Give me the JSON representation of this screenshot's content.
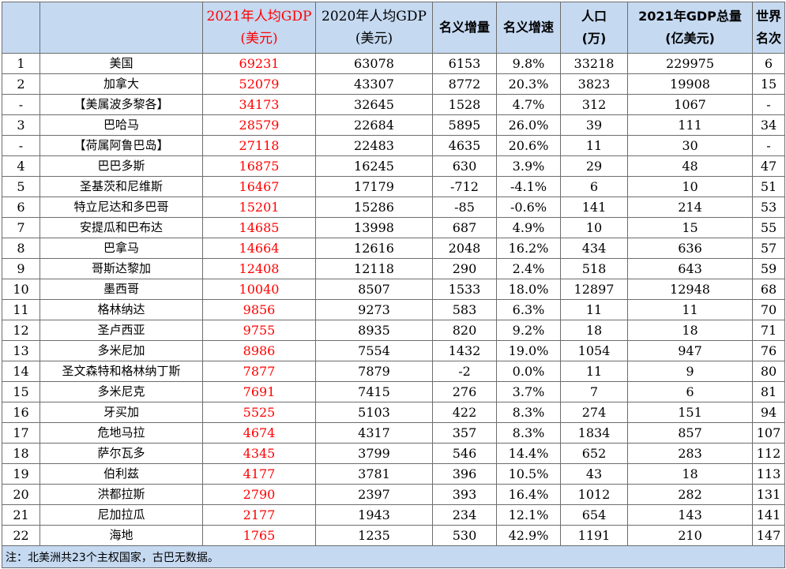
{
  "header": {
    "rank": "",
    "country": "",
    "gdp_pc_2021": [
      "2021年人均GDP",
      "(美元)"
    ],
    "gdp_pc_2020": [
      "2020年人均GDP",
      "(美元)"
    ],
    "nominal_increase": "名义增量",
    "nominal_growth": "名义增速",
    "population": [
      "人口",
      "(万)"
    ],
    "gdp_total_2021": [
      "2021年GDP总量",
      "(亿美元)"
    ],
    "world_rank": [
      "世界",
      "名次"
    ]
  },
  "rows": [
    {
      "rank": "1",
      "country": "美国",
      "gdp21": "69231",
      "gdp20": "63078",
      "inc": "6153",
      "growth": "9.8%",
      "pop": "33218",
      "total": "229975",
      "world": "6"
    },
    {
      "rank": "2",
      "country": "加拿大",
      "gdp21": "52079",
      "gdp20": "43307",
      "inc": "8772",
      "growth": "20.3%",
      "pop": "3823",
      "total": "19908",
      "world": "15"
    },
    {
      "rank": "-",
      "country": "【美属波多黎各】",
      "gdp21": "34173",
      "gdp20": "32645",
      "inc": "1528",
      "growth": "4.7%",
      "pop": "312",
      "total": "1067",
      "world": "-"
    },
    {
      "rank": "3",
      "country": "巴哈马",
      "gdp21": "28579",
      "gdp20": "22684",
      "inc": "5895",
      "growth": "26.0%",
      "pop": "39",
      "total": "111",
      "world": "34"
    },
    {
      "rank": "-",
      "country": "【荷属阿鲁巴岛】",
      "gdp21": "27118",
      "gdp20": "22483",
      "inc": "4635",
      "growth": "20.6%",
      "pop": "11",
      "total": "30",
      "world": "-"
    },
    {
      "rank": "4",
      "country": "巴巴多斯",
      "gdp21": "16875",
      "gdp20": "16245",
      "inc": "630",
      "growth": "3.9%",
      "pop": "29",
      "total": "48",
      "world": "47"
    },
    {
      "rank": "5",
      "country": "圣基茨和尼维斯",
      "gdp21": "16467",
      "gdp20": "17179",
      "inc": "-712",
      "growth": "-4.1%",
      "pop": "6",
      "total": "10",
      "world": "51"
    },
    {
      "rank": "6",
      "country": "特立尼达和多巴哥",
      "gdp21": "15201",
      "gdp20": "15286",
      "inc": "-85",
      "growth": "-0.6%",
      "pop": "141",
      "total": "214",
      "world": "53"
    },
    {
      "rank": "7",
      "country": "安提瓜和巴布达",
      "gdp21": "14685",
      "gdp20": "13998",
      "inc": "687",
      "growth": "4.9%",
      "pop": "10",
      "total": "15",
      "world": "55"
    },
    {
      "rank": "8",
      "country": "巴拿马",
      "gdp21": "14664",
      "gdp20": "12616",
      "inc": "2048",
      "growth": "16.2%",
      "pop": "434",
      "total": "636",
      "world": "57"
    },
    {
      "rank": "9",
      "country": "哥斯达黎加",
      "gdp21": "12408",
      "gdp20": "12118",
      "inc": "290",
      "growth": "2.4%",
      "pop": "518",
      "total": "643",
      "world": "59"
    },
    {
      "rank": "10",
      "country": "墨西哥",
      "gdp21": "10040",
      "gdp20": "8507",
      "inc": "1533",
      "growth": "18.0%",
      "pop": "12897",
      "total": "12948",
      "world": "68"
    },
    {
      "rank": "11",
      "country": "格林纳达",
      "gdp21": "9856",
      "gdp20": "9273",
      "inc": "583",
      "growth": "6.3%",
      "pop": "11",
      "total": "11",
      "world": "70"
    },
    {
      "rank": "12",
      "country": "圣卢西亚",
      "gdp21": "9755",
      "gdp20": "8935",
      "inc": "820",
      "growth": "9.2%",
      "pop": "18",
      "total": "18",
      "world": "71"
    },
    {
      "rank": "13",
      "country": "多米尼加",
      "gdp21": "8986",
      "gdp20": "7554",
      "inc": "1432",
      "growth": "19.0%",
      "pop": "1054",
      "total": "947",
      "world": "76"
    },
    {
      "rank": "14",
      "country": "圣文森特和格林纳丁斯",
      "gdp21": "7877",
      "gdp20": "7879",
      "inc": "-2",
      "growth": "0.0%",
      "pop": "11",
      "total": "9",
      "world": "80"
    },
    {
      "rank": "15",
      "country": "多米尼克",
      "gdp21": "7691",
      "gdp20": "7415",
      "inc": "276",
      "growth": "3.7%",
      "pop": "7",
      "total": "6",
      "world": "81"
    },
    {
      "rank": "16",
      "country": "牙买加",
      "gdp21": "5525",
      "gdp20": "5103",
      "inc": "422",
      "growth": "8.3%",
      "pop": "274",
      "total": "151",
      "world": "94"
    },
    {
      "rank": "17",
      "country": "危地马拉",
      "gdp21": "4674",
      "gdp20": "4317",
      "inc": "357",
      "growth": "8.3%",
      "pop": "1834",
      "total": "857",
      "world": "107"
    },
    {
      "rank": "18",
      "country": "萨尔瓦多",
      "gdp21": "4345",
      "gdp20": "3799",
      "inc": "546",
      "growth": "14.4%",
      "pop": "652",
      "total": "283",
      "world": "112"
    },
    {
      "rank": "19",
      "country": "伯利兹",
      "gdp21": "4177",
      "gdp20": "3781",
      "inc": "396",
      "growth": "10.5%",
      "pop": "43",
      "total": "18",
      "world": "113"
    },
    {
      "rank": "20",
      "country": "洪都拉斯",
      "gdp21": "2790",
      "gdp20": "2397",
      "inc": "393",
      "growth": "16.4%",
      "pop": "1012",
      "total": "282",
      "world": "131"
    },
    {
      "rank": "21",
      "country": "尼加拉瓜",
      "gdp21": "2177",
      "gdp20": "1943",
      "inc": "234",
      "growth": "12.1%",
      "pop": "654",
      "total": "143",
      "world": "141"
    },
    {
      "rank": "22",
      "country": "海地",
      "gdp21": "1765",
      "gdp20": "1235",
      "inc": "530",
      "growth": "42.9%",
      "pop": "1191",
      "total": "210",
      "world": "147"
    }
  ],
  "footnote": "注：北美洲共23个主权国家，古巴无数据。",
  "colors": {
    "header_bg": "#c5d9f1",
    "highlight_text": "#ff0000",
    "border": "#6d6d6d"
  }
}
